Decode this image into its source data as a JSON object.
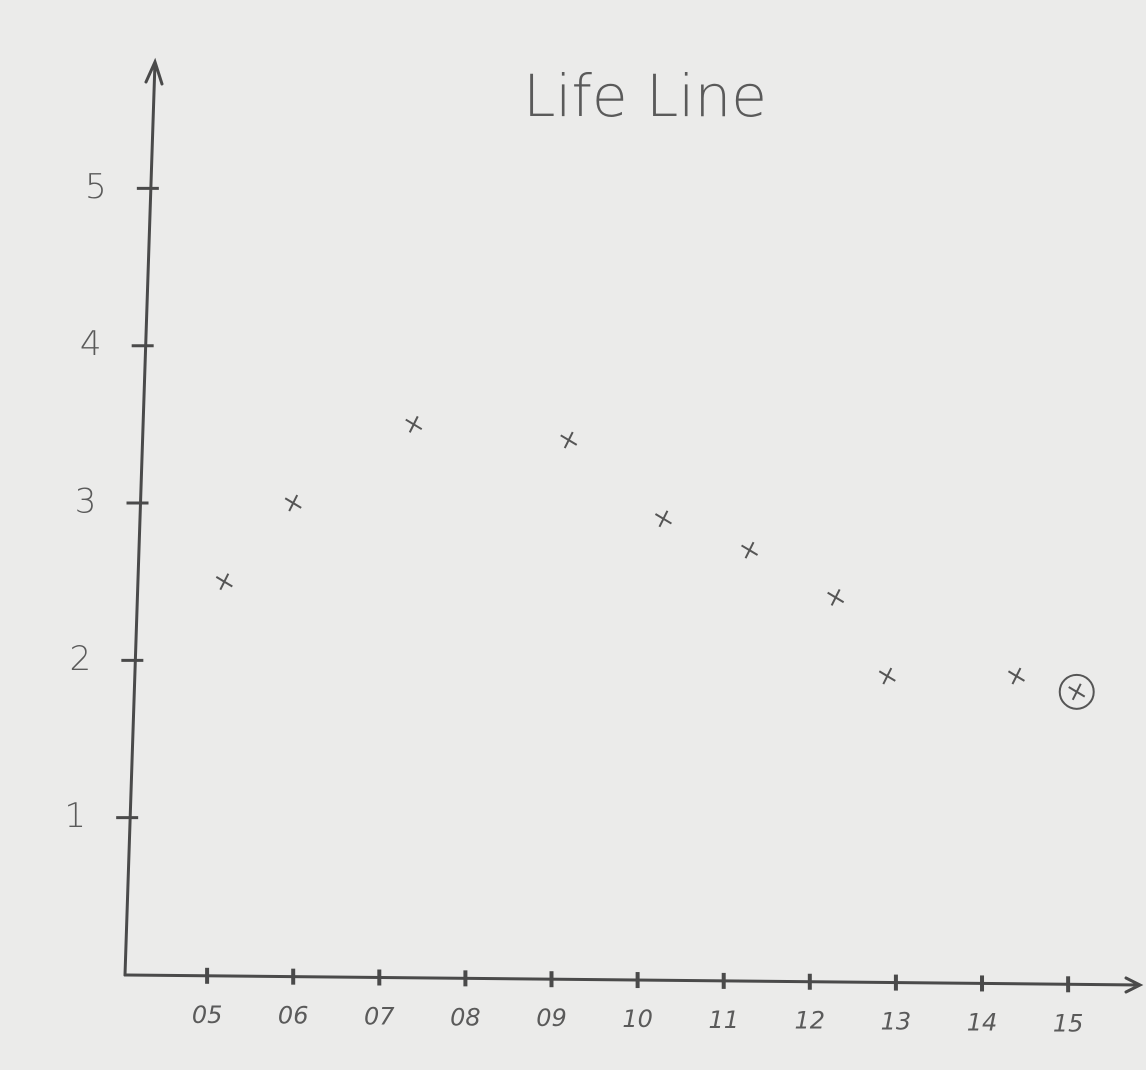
{
  "chart_data": {
    "type": "scatter",
    "title": "Life Line",
    "series": [
      {
        "color": "#555555",
        "x": [
          5.2,
          6.0,
          7.4,
          9.2,
          10.3,
          11.3,
          12.3,
          12.9,
          14.4,
          15.1
        ],
        "values": [
          2.5,
          3.0,
          3.5,
          3.4,
          2.9,
          2.7,
          2.4,
          1.9,
          1.9,
          1.8
        ]
      }
    ],
    "circled_point": 9,
    "xlim": [
      4,
      15.8
    ],
    "xticks": [
      {
        "value": 5,
        "label": "05"
      },
      {
        "value": 6,
        "label": "06"
      },
      {
        "value": 7,
        "label": "07"
      },
      {
        "value": 8,
        "label": "08"
      },
      {
        "value": 9,
        "label": "09"
      },
      10,
      11,
      12,
      13,
      14,
      15
    ],
    "ylim": [
      0,
      5.6
    ],
    "yticks": [
      1,
      2,
      3,
      4,
      5
    ]
  }
}
